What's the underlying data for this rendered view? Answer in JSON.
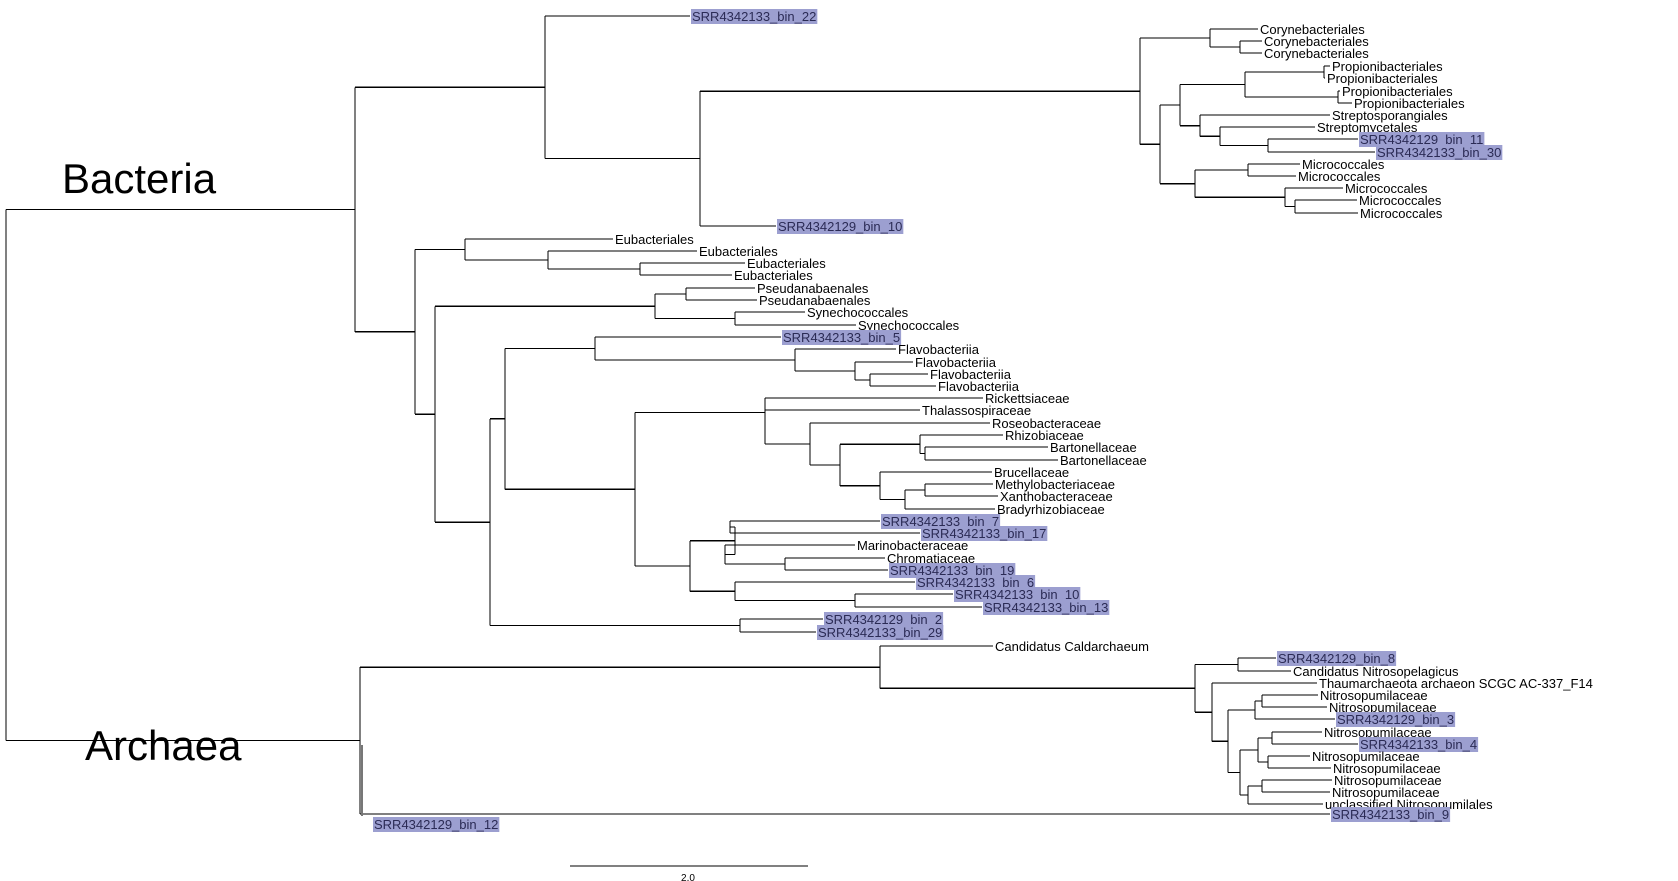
{
  "domains": {
    "bacteria": "Bacteria",
    "archaea": "Archaea"
  },
  "scale_bar": {
    "label": "2.0"
  },
  "highlight_color": "#9c9fd0",
  "leaves": [
    {
      "label": "SRR4342133_bin_22",
      "highlight": true
    },
    {
      "label": "Corynebacteriales",
      "highlight": false
    },
    {
      "label": "Corynebacteriales",
      "highlight": false
    },
    {
      "label": "Corynebacteriales",
      "highlight": false
    },
    {
      "label": "Propionibacteriales",
      "highlight": false
    },
    {
      "label": "Propionibacteriales",
      "highlight": false
    },
    {
      "label": "Propionibacteriales",
      "highlight": false
    },
    {
      "label": "Propionibacteriales",
      "highlight": false
    },
    {
      "label": "Streptosporangiales",
      "highlight": false
    },
    {
      "label": "Streptomycetales",
      "highlight": false
    },
    {
      "label": "SRR4342129_bin_11",
      "highlight": true
    },
    {
      "label": "SRR4342133_bin_30",
      "highlight": true
    },
    {
      "label": "Micrococcales",
      "highlight": false
    },
    {
      "label": "Micrococcales",
      "highlight": false
    },
    {
      "label": "Micrococcales",
      "highlight": false
    },
    {
      "label": "Micrococcales",
      "highlight": false
    },
    {
      "label": "Micrococcales",
      "highlight": false
    },
    {
      "label": "SRR4342129_bin_10",
      "highlight": true
    },
    {
      "label": "Eubacteriales",
      "highlight": false
    },
    {
      "label": "Eubacteriales",
      "highlight": false
    },
    {
      "label": "Eubacteriales",
      "highlight": false
    },
    {
      "label": "Eubacteriales",
      "highlight": false
    },
    {
      "label": "Pseudanabaenales",
      "highlight": false
    },
    {
      "label": "Pseudanabaenales",
      "highlight": false
    },
    {
      "label": "Synechococcales",
      "highlight": false
    },
    {
      "label": "Synechococcales",
      "highlight": false
    },
    {
      "label": "SRR4342133_bin_5",
      "highlight": true
    },
    {
      "label": "Flavobacteriia",
      "highlight": false
    },
    {
      "label": "Flavobacteriia",
      "highlight": false
    },
    {
      "label": "Flavobacteriia",
      "highlight": false
    },
    {
      "label": "Flavobacteriia",
      "highlight": false
    },
    {
      "label": "Rickettsiaceae",
      "highlight": false
    },
    {
      "label": "Thalassospiraceae",
      "highlight": false
    },
    {
      "label": "Roseobacteraceae",
      "highlight": false
    },
    {
      "label": "Rhizobiaceae",
      "highlight": false
    },
    {
      "label": "Bartonellaceae",
      "highlight": false
    },
    {
      "label": "Bartonellaceae",
      "highlight": false
    },
    {
      "label": "Brucellaceae",
      "highlight": false
    },
    {
      "label": "Methylobacteriaceae",
      "highlight": false
    },
    {
      "label": "Xanthobacteraceae",
      "highlight": false
    },
    {
      "label": "Bradyrhizobiaceae",
      "highlight": false
    },
    {
      "label": "SRR4342133_bin_7",
      "highlight": true
    },
    {
      "label": "SRR4342133_bin_17",
      "highlight": true
    },
    {
      "label": "Marinobacteraceae",
      "highlight": false
    },
    {
      "label": "Chromatiaceae",
      "highlight": false
    },
    {
      "label": "SRR4342133_bin_19",
      "highlight": true
    },
    {
      "label": "SRR4342133_bin_6",
      "highlight": true
    },
    {
      "label": "SRR4342133_bin_10",
      "highlight": true
    },
    {
      "label": "SRR4342133_bin_13",
      "highlight": true
    },
    {
      "label": "SRR4342129_bin_2",
      "highlight": true
    },
    {
      "label": "SRR4342133_bin_29",
      "highlight": true
    },
    {
      "label": "Candidatus Caldarchaeum",
      "highlight": false
    },
    {
      "label": "SRR4342129_bin_8",
      "highlight": true
    },
    {
      "label": "Candidatus Nitrosopelagicus",
      "highlight": false
    },
    {
      "label": "Thaumarchaeota archaeon SCGC AC-337_F14",
      "highlight": false
    },
    {
      "label": "Nitrosopumilaceae",
      "highlight": false
    },
    {
      "label": "Nitrosopumilaceae",
      "highlight": false
    },
    {
      "label": "SRR4342129_bin_3",
      "highlight": true
    },
    {
      "label": "Nitrosopumilaceae",
      "highlight": false
    },
    {
      "label": "SRR4342133_bin_4",
      "highlight": true
    },
    {
      "label": "Nitrosopumilaceae",
      "highlight": false
    },
    {
      "label": "Nitrosopumilaceae",
      "highlight": false
    },
    {
      "label": "Nitrosopumilaceae",
      "highlight": false
    },
    {
      "label": "Nitrosopumilaceae",
      "highlight": false
    },
    {
      "label": "unclassified Nitrosopumilales",
      "highlight": false
    },
    {
      "label": "SRR4342133_bin_9",
      "highlight": true
    },
    {
      "label": "SRR4342129_bin_12",
      "highlight": true
    }
  ]
}
